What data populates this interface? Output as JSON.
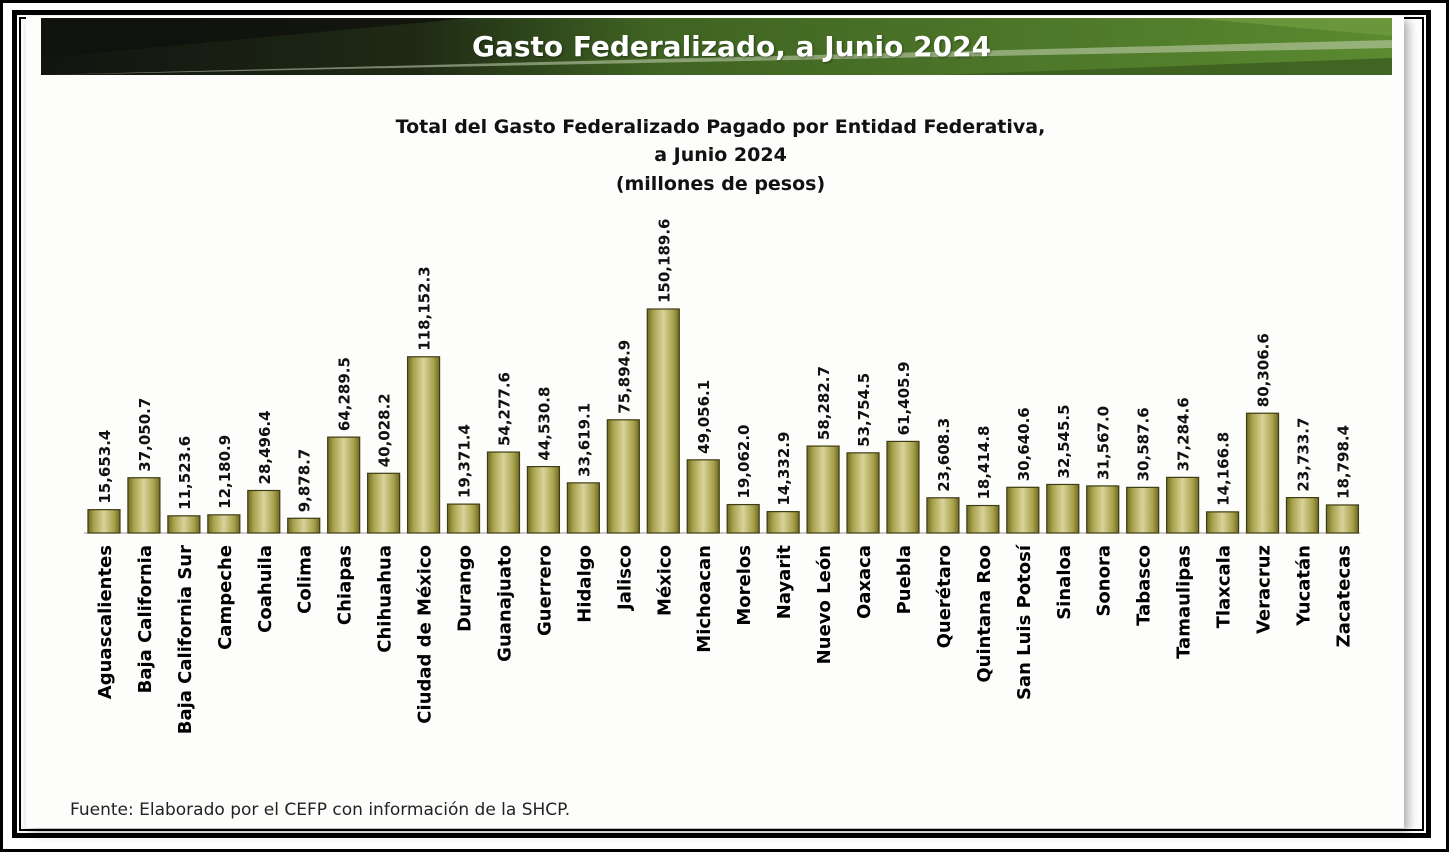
{
  "header": {
    "title": "Gasto Federalizado, a Junio 2024"
  },
  "colors": {
    "banner_dark": "#1b2113",
    "banner_green": "#4f7a2a",
    "bar_fill": "#a7a14a",
    "bar_dark": "#6d6a24",
    "bar_light": "#d8d39a"
  },
  "chart_data": {
    "type": "bar",
    "title": "Total del Gasto Federalizado Pagado por Entidad Federativa,",
    "title_line2": "a Junio 2024",
    "subtitle": "(millones de pesos)",
    "xlabel": "",
    "ylabel": "",
    "grid": false,
    "legend": "none",
    "categories": [
      "Aguascalientes",
      "Baja California",
      "Baja California Sur",
      "Campeche",
      "Coahuila",
      "Colima",
      "Chiapas",
      "Chihuahua",
      "Ciudad de México",
      "Durango",
      "Guanajuato",
      "Guerrero",
      "Hidalgo",
      "Jalisco",
      "México",
      "Michoacan",
      "Morelos",
      "Nayarit",
      "Nuevo León",
      "Oaxaca",
      "Puebla",
      "Querétaro",
      "Quintana Roo",
      "San Luis Potosí",
      "Sinaloa",
      "Sonora",
      "Tabasco",
      "Tamaulipas",
      "Tlaxcala",
      "Veracruz",
      "Yucatán",
      "Zacatecas"
    ],
    "values": [
      15653.4,
      37050.7,
      11523.6,
      12180.9,
      28496.4,
      9878.7,
      64289.5,
      40028.2,
      118152.3,
      19371.4,
      54277.6,
      44530.8,
      33619.1,
      75894.9,
      150189.6,
      49056.1,
      19062.0,
      14332.9,
      58282.7,
      53754.5,
      61405.9,
      23608.3,
      18414.8,
      30640.6,
      32545.5,
      31567.0,
      30587.6,
      37284.6,
      14166.8,
      80306.6,
      23733.7,
      18798.4
    ],
    "value_labels": [
      "15,653.4",
      "37,050.7",
      "11,523.6",
      "12,180.9",
      "28,496.4",
      "9,878.7",
      "64,289.5",
      "40,028.2",
      "118,152.3",
      "19,371.4",
      "54,277.6",
      "44,530.8",
      "33,619.1",
      "75,894.9",
      "150,189.6",
      "49,056.1",
      "19,062.0",
      "14,332.9",
      "58,282.7",
      "53,754.5",
      "61,405.9",
      "23,608.3",
      "18,414.8",
      "30,640.6",
      "32,545.5",
      "31,567.0",
      "30,587.6",
      "37,284.6",
      "14,166.8",
      "80,306.6",
      "23,733.7",
      "18,798.4"
    ]
  },
  "footer": {
    "source": "Fuente: Elaborado por el CEFP con información de la SHCP."
  }
}
